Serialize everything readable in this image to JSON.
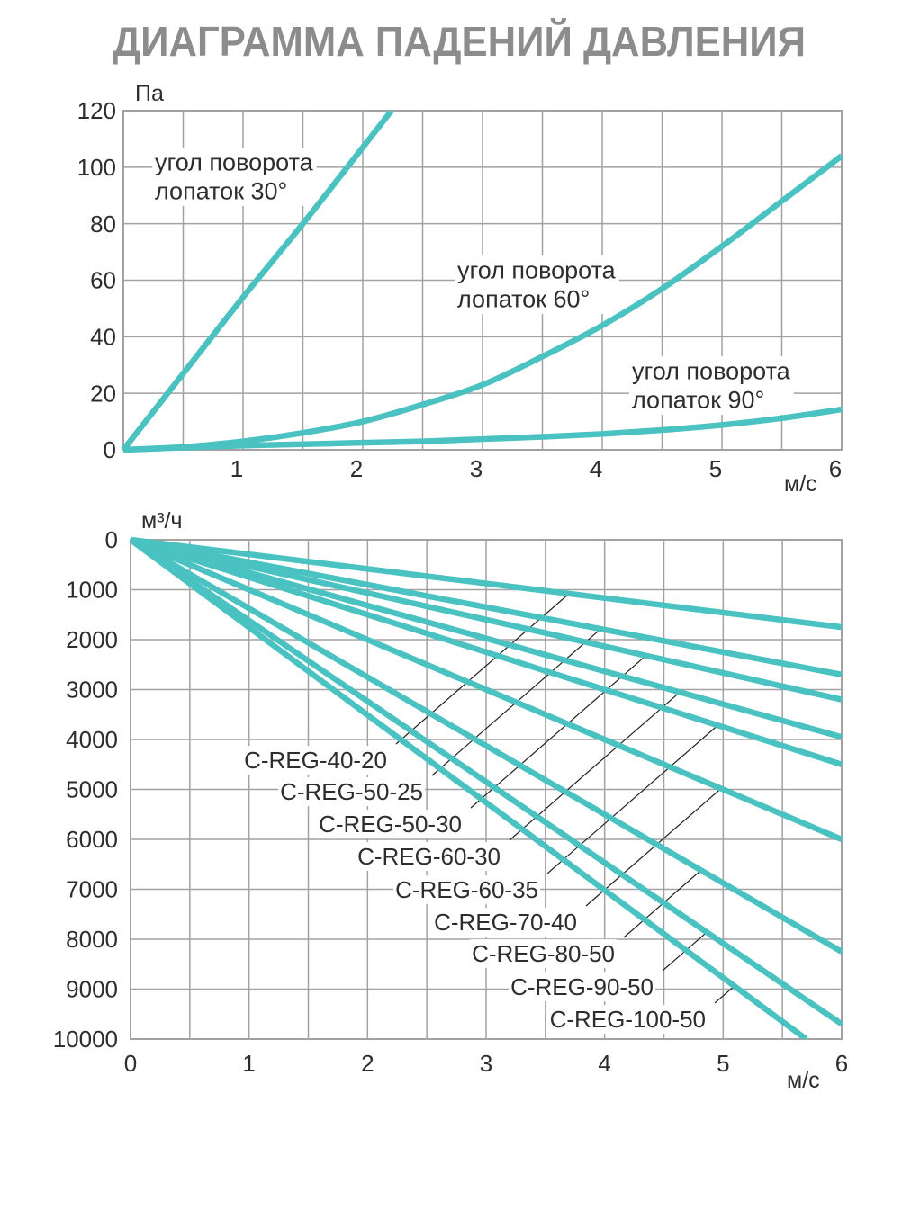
{
  "title": "ДИАГРАММА ПАДЕНИЙ ДАВЛЕНИЯ",
  "colors": {
    "series": "#49c2c1",
    "grid": "#a2a2a2",
    "title": "#8c8c8c",
    "text": "#2d2d2d",
    "leader": "#222222",
    "background": "#ffffff"
  },
  "chart_data": [
    {
      "type": "line",
      "ylabel": "Па",
      "xlabel": "м/с",
      "xlim": [
        0,
        6
      ],
      "ylim": [
        0,
        120
      ],
      "xticks": [
        1,
        2,
        3,
        4,
        5,
        6
      ],
      "yticks": [
        0,
        20,
        40,
        60,
        80,
        100,
        120
      ],
      "grid": true,
      "series": [
        {
          "label": [
            "угол поворота",
            "лопаток 30°"
          ],
          "x": [
            0,
            0.5,
            1,
            1.5,
            2,
            2.24
          ],
          "y": [
            0,
            27,
            54,
            80,
            107,
            120
          ]
        },
        {
          "label": [
            "угол поворота",
            "лопаток 60°"
          ],
          "x": [
            0,
            0.5,
            1,
            1.5,
            2,
            2.5,
            3,
            3.5,
            4,
            4.5,
            5,
            5.5,
            6
          ],
          "y": [
            0,
            1,
            3,
            6,
            10,
            16,
            23,
            33,
            44,
            57,
            72,
            88,
            104
          ]
        },
        {
          "label": [
            "угол поворота",
            "лопаток 90°"
          ],
          "x": [
            0,
            0.5,
            1,
            1.5,
            2,
            2.5,
            3,
            3.5,
            4,
            4.5,
            5,
            5.5,
            6
          ],
          "y": [
            0,
            0.8,
            1.5,
            2,
            2.5,
            3,
            3.8,
            4.6,
            5.6,
            7,
            8.8,
            11.2,
            14.3
          ]
        }
      ]
    },
    {
      "type": "line",
      "ylabel": "м³/ч",
      "xlabel": "м/с",
      "xlim": [
        0,
        6
      ],
      "ylim": [
        0,
        10000
      ],
      "y_inverted": true,
      "xticks": [
        0,
        1,
        2,
        3,
        4,
        5,
        6
      ],
      "yticks": [
        0,
        1000,
        2000,
        3000,
        4000,
        5000,
        6000,
        7000,
        8000,
        9000,
        10000
      ],
      "grid": true,
      "series": [
        {
          "name": "C-REG-40-20",
          "x": [
            0,
            6
          ],
          "y": [
            0,
            1750
          ]
        },
        {
          "name": "C-REG-50-25",
          "x": [
            0,
            6
          ],
          "y": [
            0,
            2700
          ]
        },
        {
          "name": "C-REG-50-30",
          "x": [
            0,
            6
          ],
          "y": [
            0,
            3200
          ]
        },
        {
          "name": "C-REG-60-30",
          "x": [
            0,
            6
          ],
          "y": [
            0,
            3950
          ]
        },
        {
          "name": "C-REG-60-35",
          "x": [
            0,
            6
          ],
          "y": [
            0,
            4500
          ]
        },
        {
          "name": "C-REG-70-40",
          "x": [
            0,
            6
          ],
          "y": [
            0,
            6000
          ]
        },
        {
          "name": "C-REG-80-50",
          "x": [
            0,
            6
          ],
          "y": [
            0,
            8250
          ]
        },
        {
          "name": "C-REG-90-50",
          "x": [
            0,
            6
          ],
          "y": [
            0,
            9700
          ]
        },
        {
          "name": "C-REG-100-50",
          "x": [
            0,
            5.7
          ],
          "y": [
            0,
            10000
          ]
        }
      ]
    }
  ]
}
